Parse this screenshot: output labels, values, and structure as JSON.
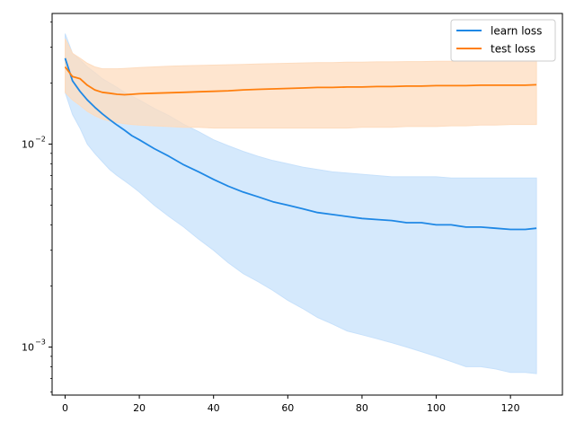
{
  "chart_data": {
    "type": "line",
    "title": "",
    "xlabel": "",
    "ylabel": "",
    "xlim": [
      -3.5,
      134
    ],
    "ylim": [
      0.00058,
      0.044
    ],
    "yscale": "log",
    "x_ticks": [
      0,
      20,
      40,
      60,
      80,
      100,
      120
    ],
    "x_tick_labels": [
      "0",
      "20",
      "40",
      "60",
      "80",
      "100",
      "120"
    ],
    "y_major_ticks": [
      0.001,
      0.01
    ],
    "y_tick_labels": [
      "10",
      "10"
    ],
    "y_tick_exponents": [
      "−3",
      "−2"
    ],
    "grid": false,
    "legend_position": "top-right",
    "x": [
      0,
      2,
      4,
      6,
      8,
      10,
      12,
      14,
      16,
      18,
      20,
      24,
      28,
      32,
      36,
      40,
      44,
      48,
      52,
      56,
      60,
      64,
      68,
      72,
      76,
      80,
      84,
      88,
      92,
      96,
      100,
      104,
      108,
      112,
      116,
      120,
      124,
      127
    ],
    "series": [
      {
        "name": "learn loss",
        "color": "#1f88e5",
        "band_color": "#c7e1fb",
        "values": [
          0.0265,
          0.0205,
          0.0182,
          0.0165,
          0.0152,
          0.0141,
          0.0132,
          0.0124,
          0.0117,
          0.011,
          0.0105,
          0.0095,
          0.0087,
          0.0079,
          0.0073,
          0.0067,
          0.0062,
          0.0058,
          0.0055,
          0.0052,
          0.005,
          0.0048,
          0.0046,
          0.0045,
          0.0044,
          0.0043,
          0.00425,
          0.0042,
          0.0041,
          0.0041,
          0.004,
          0.004,
          0.0039,
          0.0039,
          0.00385,
          0.0038,
          0.0038,
          0.00385
        ],
        "upper": [
          0.035,
          0.028,
          0.026,
          0.024,
          0.0225,
          0.021,
          0.02,
          0.019,
          0.018,
          0.0172,
          0.0165,
          0.015,
          0.0138,
          0.0125,
          0.0115,
          0.0105,
          0.0098,
          0.0092,
          0.0087,
          0.0083,
          0.008,
          0.0077,
          0.0075,
          0.0073,
          0.0072,
          0.0071,
          0.007,
          0.0069,
          0.0069,
          0.0069,
          0.0069,
          0.0068,
          0.0068,
          0.0068,
          0.0068,
          0.0068,
          0.0068,
          0.0068
        ],
        "lower": [
          0.018,
          0.014,
          0.012,
          0.01,
          0.009,
          0.0082,
          0.0075,
          0.007,
          0.0066,
          0.0062,
          0.0058,
          0.005,
          0.0044,
          0.0039,
          0.0034,
          0.003,
          0.0026,
          0.0023,
          0.0021,
          0.0019,
          0.0017,
          0.00155,
          0.0014,
          0.0013,
          0.0012,
          0.00115,
          0.0011,
          0.00105,
          0.001,
          0.00095,
          0.0009,
          0.00085,
          0.0008,
          0.0008,
          0.00078,
          0.00075,
          0.00075,
          0.00074
        ]
      },
      {
        "name": "test loss",
        "color": "#ff7f0e",
        "band_color": "#fddcbf",
        "values": [
          0.024,
          0.0215,
          0.021,
          0.0195,
          0.0185,
          0.018,
          0.0178,
          0.0176,
          0.0175,
          0.0176,
          0.0177,
          0.0178,
          0.0179,
          0.018,
          0.0181,
          0.0182,
          0.0183,
          0.0185,
          0.0186,
          0.0187,
          0.0188,
          0.0189,
          0.019,
          0.019,
          0.0191,
          0.0191,
          0.0192,
          0.0192,
          0.0193,
          0.0193,
          0.0194,
          0.0194,
          0.0194,
          0.0195,
          0.0195,
          0.0195,
          0.0195,
          0.0196
        ],
        "upper": [
          0.033,
          0.028,
          0.0265,
          0.025,
          0.024,
          0.0235,
          0.0235,
          0.0235,
          0.0236,
          0.0237,
          0.0238,
          0.024,
          0.0242,
          0.0243,
          0.0244,
          0.0245,
          0.0246,
          0.0247,
          0.0248,
          0.0249,
          0.025,
          0.0251,
          0.0252,
          0.0252,
          0.0253,
          0.0253,
          0.0254,
          0.0254,
          0.0255,
          0.0255,
          0.0256,
          0.0256,
          0.0257,
          0.0257,
          0.0257,
          0.0258,
          0.0258,
          0.0258
        ],
        "lower": [
          0.018,
          0.0165,
          0.0155,
          0.0145,
          0.0138,
          0.0133,
          0.013,
          0.0128,
          0.0126,
          0.0125,
          0.0124,
          0.0123,
          0.0122,
          0.0121,
          0.0121,
          0.012,
          0.012,
          0.012,
          0.012,
          0.012,
          0.012,
          0.012,
          0.012,
          0.012,
          0.012,
          0.0121,
          0.0121,
          0.0121,
          0.0122,
          0.0122,
          0.0122,
          0.0123,
          0.0123,
          0.0124,
          0.0124,
          0.0125,
          0.0125,
          0.0125
        ]
      }
    ]
  }
}
